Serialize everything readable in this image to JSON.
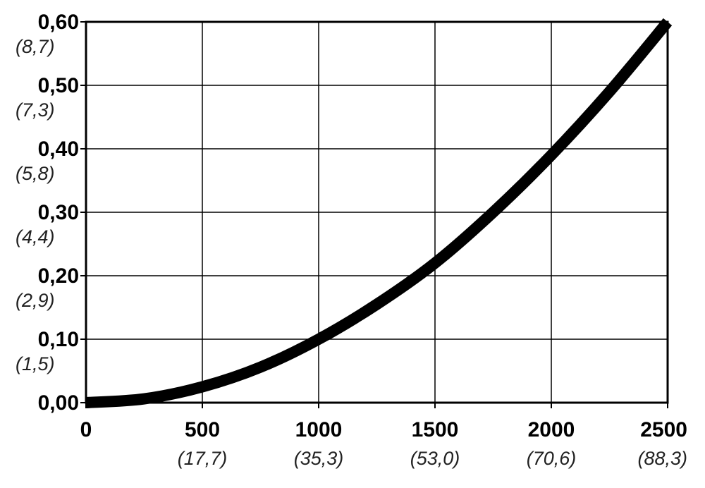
{
  "chart_data": {
    "type": "line",
    "title": "",
    "xlabel": "",
    "ylabel": "",
    "xlim": [
      0,
      2500
    ],
    "ylim": [
      0,
      0.6
    ],
    "grid": true,
    "x_ticks": [
      {
        "value": 0,
        "label": "0",
        "sublabel": ""
      },
      {
        "value": 500,
        "label": "500",
        "sublabel": "(17,7)"
      },
      {
        "value": 1000,
        "label": "1000",
        "sublabel": "(35,3)"
      },
      {
        "value": 1500,
        "label": "1500",
        "sublabel": "(53,0)"
      },
      {
        "value": 2000,
        "label": "2000",
        "sublabel": "(70,6)"
      },
      {
        "value": 2500,
        "label": "2500",
        "sublabel": "(88,3)"
      }
    ],
    "y_ticks": [
      {
        "value": 0,
        "label": "0,00",
        "sublabel": ""
      },
      {
        "value": 0.1,
        "label": "0,10",
        "sublabel": "(1,5)"
      },
      {
        "value": 0.2,
        "label": "0,20",
        "sublabel": "(2,9)"
      },
      {
        "value": 0.3,
        "label": "0,30",
        "sublabel": "(4,4)"
      },
      {
        "value": 0.4,
        "label": "0,40",
        "sublabel": "(5,8)"
      },
      {
        "value": 0.5,
        "label": "0,50",
        "sublabel": "(7,3)"
      },
      {
        "value": 0.6,
        "label": "0,60",
        "sublabel": "(8,7)"
      }
    ],
    "series": [
      {
        "color": "#000000",
        "x": [
          0,
          250,
          500,
          750,
          1000,
          1250,
          1500,
          1750,
          2000,
          2250,
          2500
        ],
        "y": [
          0.0,
          0.006,
          0.025,
          0.056,
          0.1,
          0.155,
          0.22,
          0.3,
          0.39,
          0.49,
          0.6
        ]
      }
    ]
  }
}
